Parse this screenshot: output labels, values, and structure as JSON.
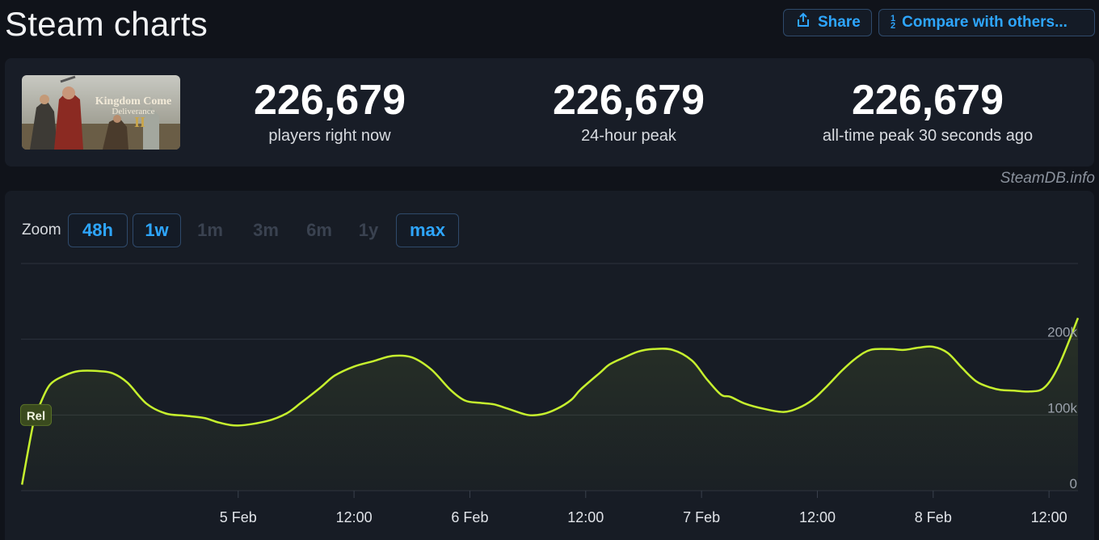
{
  "header": {
    "title": "Steam charts",
    "share_label": "Share",
    "compare_label": "Compare with others..."
  },
  "stats": [
    {
      "value": "226,679",
      "label": "players right now"
    },
    {
      "value": "226,679",
      "label": "24-hour peak"
    },
    {
      "value": "226,679",
      "label": "all-time peak 30 seconds ago"
    }
  ],
  "thumbnail": {
    "title": "Kingdom Come Deliverance"
  },
  "watermark": "SteamDB.info",
  "zoom": {
    "label": "Zoom",
    "options": [
      {
        "label": "48h",
        "active": true
      },
      {
        "label": "1w",
        "active": true
      },
      {
        "label": "1m",
        "active": false
      },
      {
        "label": "3m",
        "active": false
      },
      {
        "label": "6m",
        "active": false
      },
      {
        "label": "1y",
        "active": false
      },
      {
        "label": "max",
        "active": true
      }
    ]
  },
  "colors": {
    "accent": "#2ea6ff",
    "line": "#c6f02e",
    "background": "#10131a"
  },
  "chart_data": {
    "type": "area",
    "ylim": [
      0,
      300000
    ],
    "yticks": [
      0,
      100000,
      200000
    ],
    "ytick_labels": [
      "0",
      "100k",
      "200k"
    ],
    "xlim": [
      -22.5,
      87
    ],
    "xticks": [
      0,
      12,
      24,
      36,
      48,
      60,
      72,
      84
    ],
    "xtick_labels": [
      "5 Feb",
      "12:00",
      "6 Feb",
      "12:00",
      "7 Feb",
      "12:00",
      "8 Feb",
      "12:00"
    ],
    "marker": {
      "label": "Rel",
      "x": -21.2,
      "y": 100000
    },
    "series": [
      {
        "x": [
          -22.4,
          -21.2,
          -20.5,
          -19.5,
          -18,
          -16.5,
          -14.5,
          -13,
          -11.5,
          -9.5,
          -7.5,
          -5.5,
          -3.5,
          -2,
          0,
          3,
          5,
          6.5,
          8.5,
          10,
          12,
          14,
          16,
          18,
          20,
          22,
          23.5,
          25,
          26.5,
          28,
          30,
          31.5,
          33,
          34.5,
          35.5,
          37.5,
          38.5,
          40,
          41.5,
          43,
          45,
          47,
          48.5,
          50,
          51,
          52.5,
          54.5,
          56.5,
          58,
          59.5,
          61,
          62.5,
          64,
          65.5,
          67.5,
          69,
          70.5,
          72,
          73.5,
          75,
          76.5,
          78,
          79,
          80.5,
          82,
          83.5,
          85,
          87
        ],
        "values": [
          8000,
          90000,
          115000,
          140000,
          152000,
          158000,
          158000,
          155000,
          143000,
          115000,
          102000,
          99000,
          96000,
          90000,
          86000,
          92000,
          102000,
          116000,
          136000,
          152000,
          164000,
          171000,
          178000,
          176000,
          160000,
          133000,
          119000,
          116000,
          114000,
          108000,
          100000,
          101000,
          108000,
          120000,
          134000,
          156000,
          167000,
          176000,
          184000,
          187000,
          186000,
          172000,
          148000,
          127000,
          124000,
          115000,
          108000,
          104000,
          109000,
          120000,
          138000,
          158000,
          175000,
          186000,
          187000,
          186000,
          189000,
          190000,
          182000,
          162000,
          144000,
          136000,
          133000,
          132000,
          131000,
          136000,
          165000,
          228000
        ]
      }
    ]
  }
}
